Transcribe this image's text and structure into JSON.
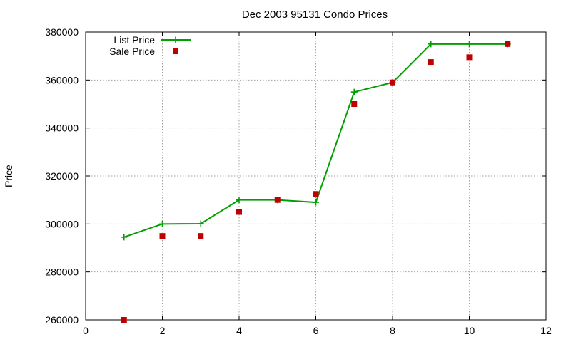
{
  "chart_data": {
    "type": "line",
    "title": "Dec 2003 95131 Condo Prices",
    "xlabel": "",
    "ylabel": "Price",
    "xlim": [
      0,
      12
    ],
    "ylim": [
      260000,
      380000
    ],
    "x_ticks": [
      0,
      2,
      4,
      6,
      8,
      10,
      12
    ],
    "y_ticks": [
      260000,
      280000,
      300000,
      320000,
      340000,
      360000,
      380000
    ],
    "grid": true,
    "legend_position": "top-left",
    "series": [
      {
        "name": "List Price",
        "style": "line+cross",
        "color": "#00a000",
        "x": [
          1,
          2,
          3,
          4,
          5,
          6,
          7,
          8,
          9,
          10,
          11
        ],
        "y": [
          294500,
          300000,
          300100,
          310000,
          310000,
          309000,
          355000,
          359000,
          375000,
          375000,
          375000
        ]
      },
      {
        "name": "Sale Price",
        "style": "square",
        "color": "#c00000",
        "x": [
          1,
          2,
          3,
          4,
          5,
          6,
          7,
          8,
          9,
          10,
          11
        ],
        "y": [
          260000,
          295000,
          295000,
          305000,
          310000,
          312500,
          350000,
          359000,
          367500,
          369500,
          375000
        ]
      }
    ]
  }
}
